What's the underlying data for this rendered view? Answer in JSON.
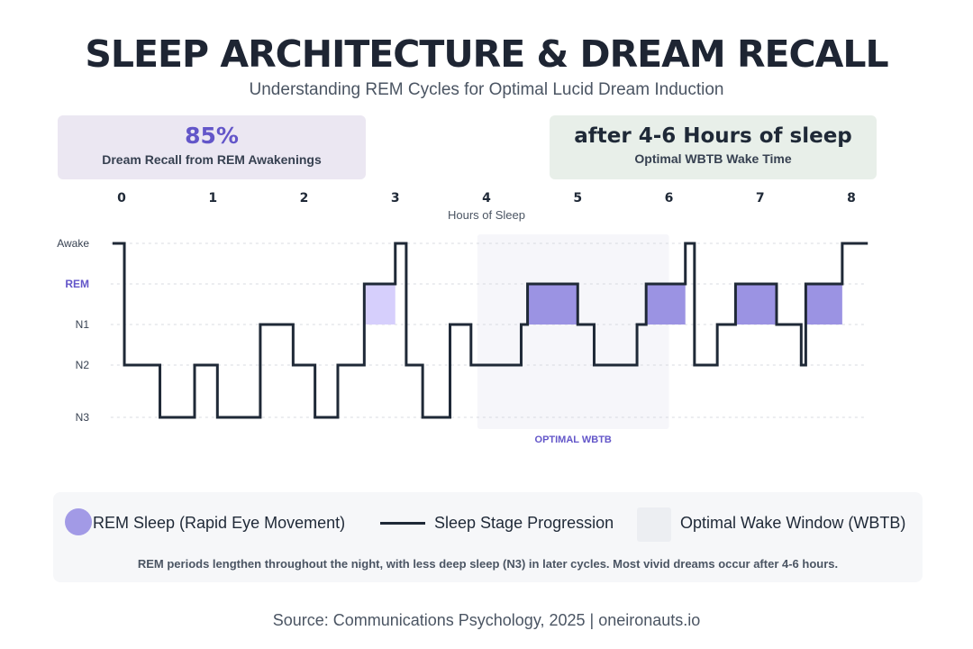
{
  "title": "SLEEP ARCHITECTURE & DREAM RECALL",
  "subtitle": "Understanding REM Cycles for Optimal Lucid Dream Induction",
  "stats": [
    {
      "value": "85%",
      "label": "Dream Recall from REM Awakenings"
    },
    {
      "value": "after 4-6 Hours of sleep",
      "label": "Optimal WBTB Wake Time"
    }
  ],
  "chart_data": {
    "type": "line",
    "xlabel": "Hours of Sleep",
    "xlim": [
      0,
      8
    ],
    "x_ticks": [
      "0",
      "1",
      "2",
      "3",
      "4",
      "5",
      "6",
      "7",
      "8"
    ],
    "stages": [
      "Awake",
      "REM",
      "N1",
      "N2",
      "N3"
    ],
    "grid": true,
    "series": [
      {
        "name": "Sleep Stage Progression",
        "steps": [
          [
            -0.1,
            "Awake"
          ],
          [
            0.03,
            "N2"
          ],
          [
            0.42,
            "N3"
          ],
          [
            0.8,
            "N2"
          ],
          [
            1.05,
            "N3"
          ],
          [
            1.52,
            "N1"
          ],
          [
            1.88,
            "N2"
          ],
          [
            2.12,
            "N3"
          ],
          [
            2.37,
            "N2"
          ],
          [
            2.66,
            "REM"
          ],
          [
            3.0,
            "Awake"
          ],
          [
            3.12,
            "N2"
          ],
          [
            3.3,
            "N3"
          ],
          [
            3.6,
            "N1"
          ],
          [
            3.83,
            "N2"
          ],
          [
            3.98,
            "N2"
          ],
          [
            4.25,
            "N2"
          ],
          [
            4.38,
            "N1"
          ],
          [
            4.45,
            "REM"
          ],
          [
            5.0,
            "N1"
          ],
          [
            5.18,
            "N2"
          ],
          [
            5.65,
            "N1"
          ],
          [
            5.75,
            "REM"
          ],
          [
            6.18,
            "Awake"
          ],
          [
            6.28,
            "N2"
          ],
          [
            6.53,
            "N1"
          ],
          [
            6.73,
            "REM"
          ],
          [
            7.18,
            "N1"
          ],
          [
            7.45,
            "N2"
          ],
          [
            7.5,
            "REM"
          ],
          [
            7.9,
            "Awake"
          ],
          [
            8.18,
            "Awake"
          ]
        ]
      }
    ],
    "rem_periods": [
      {
        "start": 2.66,
        "end": 3.0
      },
      {
        "start": 4.45,
        "end": 5.0
      },
      {
        "start": 5.75,
        "end": 6.18
      },
      {
        "start": 6.73,
        "end": 7.18
      },
      {
        "start": 7.5,
        "end": 7.9
      }
    ],
    "wbtb_window": {
      "start": 3.9,
      "end": 6.0,
      "label": "OPTIMAL WBTB"
    },
    "colors": {
      "line": "#1f2937",
      "rem_early": "#d6cffc",
      "rem": "#9b93e3",
      "wbtb": "#f6f6fa",
      "accent": "#6356c9"
    }
  },
  "legend": {
    "items": [
      "REM Sleep (Rapid Eye Movement)",
      "Sleep Stage Progression",
      "Optimal Wake Window (WBTB)"
    ],
    "note": "REM periods lengthen throughout the night, with less deep sleep (N3) in later cycles. Most vivid dreams occur after 4-6 hours."
  },
  "source": "Source: Communications Psychology, 2025 | oneironauts.io"
}
